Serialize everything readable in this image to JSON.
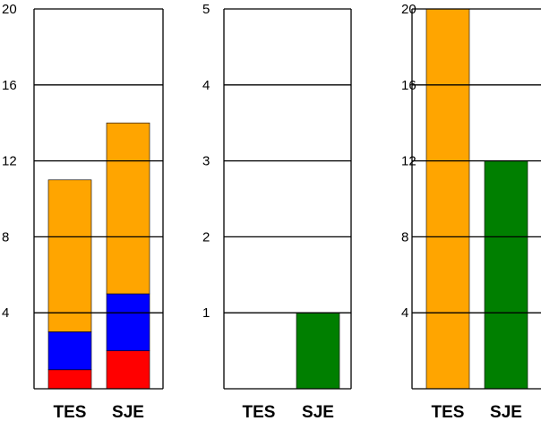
{
  "colors": {
    "red": "#ff0000",
    "blue": "#0000ff",
    "orange": "#ffa500",
    "green": "#007f00",
    "grid": "#000000"
  },
  "chart_data": [
    {
      "type": "bar",
      "stacked": true,
      "categories": [
        "TES",
        "SJE"
      ],
      "ylim": [
        0,
        20
      ],
      "yticks": [
        "4",
        "8",
        "12",
        "16",
        "20"
      ],
      "grid": true,
      "series": [
        {
          "color": "#ff0000",
          "values": [
            1,
            2
          ]
        },
        {
          "color": "#0000ff",
          "values": [
            2,
            3
          ]
        },
        {
          "color": "#ffa500",
          "values": [
            8,
            9
          ]
        }
      ]
    },
    {
      "type": "bar",
      "stacked": false,
      "categories": [
        "TES",
        "SJE"
      ],
      "ylim": [
        0,
        5
      ],
      "yticks": [
        "1",
        "2",
        "3",
        "4",
        "5"
      ],
      "grid": true,
      "series": [
        {
          "color": "#007f00",
          "values": [
            0,
            1
          ]
        }
      ]
    },
    {
      "type": "bar",
      "stacked": false,
      "categories": [
        "TES",
        "SJE"
      ],
      "ylim": [
        0,
        20
      ],
      "yticks": [
        "4",
        "8",
        "12",
        "16",
        "20"
      ],
      "grid": true,
      "bar_colors": [
        "#ffa500",
        "#007f00"
      ],
      "values": [
        20,
        12
      ]
    }
  ]
}
